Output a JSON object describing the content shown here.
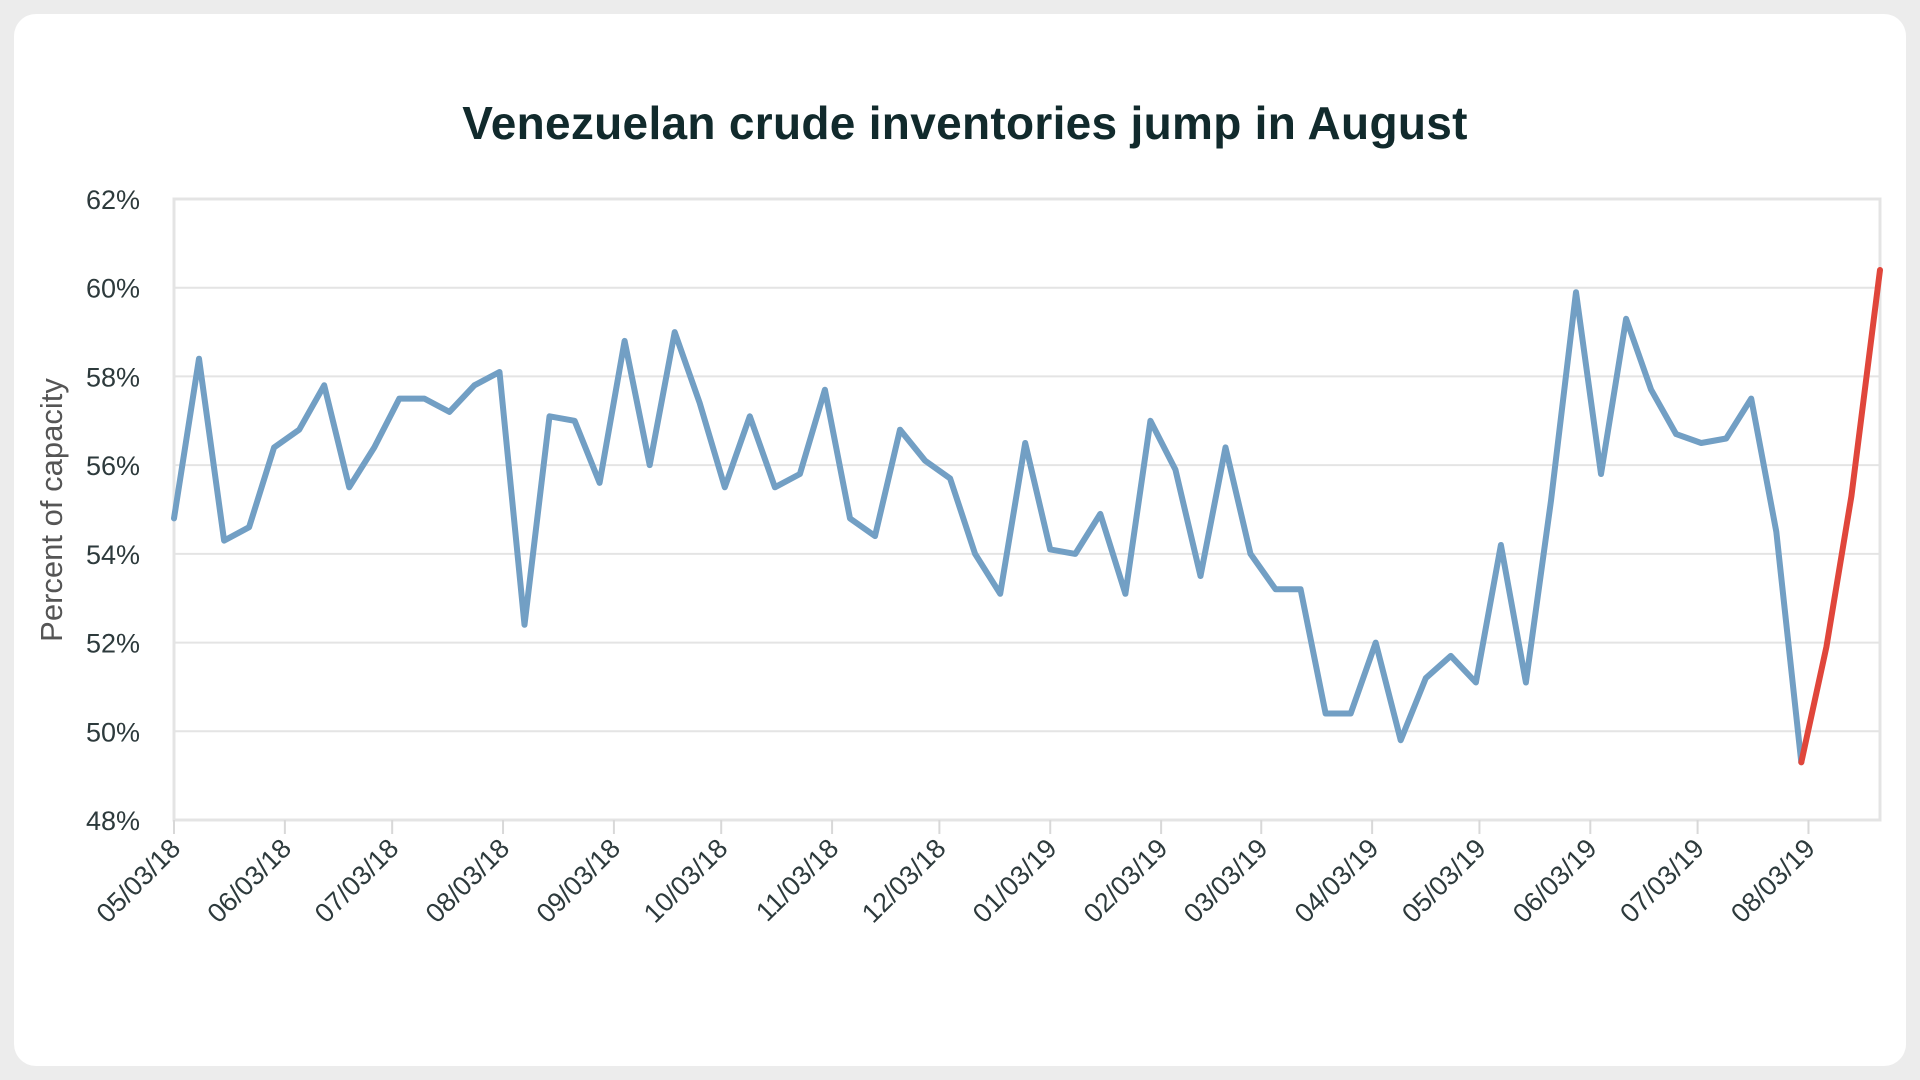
{
  "chart_data": {
    "type": "line",
    "title": "Venezuelan crude inventories jump in August",
    "ylabel": "Percent of capacity",
    "xlabel": "",
    "ylim": [
      48,
      62
    ],
    "ytick_values": [
      48,
      50,
      52,
      54,
      56,
      58,
      60,
      62
    ],
    "ytick_labels": [
      "48%",
      "50%",
      "52%",
      "54%",
      "56%",
      "58%",
      "60%",
      "62%"
    ],
    "xtick_labels": [
      "05/03/18",
      "06/03/18",
      "07/03/18",
      "08/03/18",
      "09/03/18",
      "10/03/18",
      "11/03/18",
      "12/03/18",
      "01/03/19",
      "02/03/19",
      "03/03/19",
      "04/03/19",
      "05/03/19",
      "06/03/19",
      "07/03/19",
      "08/03/19"
    ],
    "xlim": [
      "2018-05-03",
      "2019-08-23"
    ],
    "grid": true,
    "series": [
      {
        "color": "#729fc4",
        "points": [
          [
            "2018-05-03",
            54.8
          ],
          [
            "2018-05-10",
            58.4
          ],
          [
            "2018-05-17",
            54.3
          ],
          [
            "2018-05-24",
            54.6
          ],
          [
            "2018-05-31",
            56.4
          ],
          [
            "2018-06-07",
            56.8
          ],
          [
            "2018-06-14",
            57.8
          ],
          [
            "2018-06-21",
            55.5
          ],
          [
            "2018-06-28",
            56.4
          ],
          [
            "2018-07-05",
            57.5
          ],
          [
            "2018-07-12",
            57.5
          ],
          [
            "2018-07-19",
            57.2
          ],
          [
            "2018-07-26",
            57.8
          ],
          [
            "2018-08-02",
            58.1
          ],
          [
            "2018-08-09",
            52.4
          ],
          [
            "2018-08-16",
            57.1
          ],
          [
            "2018-08-23",
            57.0
          ],
          [
            "2018-08-30",
            55.6
          ],
          [
            "2018-09-06",
            58.8
          ],
          [
            "2018-09-13",
            56.0
          ],
          [
            "2018-09-20",
            59.0
          ],
          [
            "2018-09-27",
            57.4
          ],
          [
            "2018-10-04",
            55.5
          ],
          [
            "2018-10-11",
            57.1
          ],
          [
            "2018-10-18",
            55.5
          ],
          [
            "2018-10-25",
            55.8
          ],
          [
            "2018-11-01",
            57.7
          ],
          [
            "2018-11-08",
            54.8
          ],
          [
            "2018-11-15",
            54.4
          ],
          [
            "2018-11-22",
            56.8
          ],
          [
            "2018-11-29",
            56.1
          ],
          [
            "2018-12-06",
            55.7
          ],
          [
            "2018-12-13",
            54.0
          ],
          [
            "2018-12-20",
            53.1
          ],
          [
            "2018-12-27",
            56.5
          ],
          [
            "2019-01-03",
            54.1
          ],
          [
            "2019-01-10",
            54.0
          ],
          [
            "2019-01-17",
            54.9
          ],
          [
            "2019-01-24",
            53.1
          ],
          [
            "2019-01-31",
            57.0
          ],
          [
            "2019-02-07",
            55.9
          ],
          [
            "2019-02-14",
            53.5
          ],
          [
            "2019-02-21",
            56.4
          ],
          [
            "2019-02-28",
            54.0
          ],
          [
            "2019-03-07",
            53.2
          ],
          [
            "2019-03-14",
            53.2
          ],
          [
            "2019-03-21",
            50.4
          ],
          [
            "2019-03-28",
            50.4
          ],
          [
            "2019-04-04",
            52.0
          ],
          [
            "2019-04-11",
            49.8
          ],
          [
            "2019-04-18",
            51.2
          ],
          [
            "2019-04-25",
            51.7
          ],
          [
            "2019-05-02",
            51.1
          ],
          [
            "2019-05-09",
            54.2
          ],
          [
            "2019-05-16",
            51.1
          ],
          [
            "2019-05-23",
            55.2
          ],
          [
            "2019-05-30",
            59.9
          ],
          [
            "2019-06-06",
            55.8
          ],
          [
            "2019-06-13",
            59.3
          ],
          [
            "2019-06-20",
            57.7
          ],
          [
            "2019-06-27",
            56.7
          ],
          [
            "2019-07-04",
            56.5
          ],
          [
            "2019-07-11",
            56.6
          ],
          [
            "2019-07-18",
            57.5
          ],
          [
            "2019-07-25",
            54.5
          ],
          [
            "2019-08-01",
            49.3
          ]
        ]
      },
      {
        "color": "#e0463b",
        "points": [
          [
            "2019-08-01",
            49.3
          ],
          [
            "2019-08-08",
            51.9
          ],
          [
            "2019-08-15",
            55.3
          ],
          [
            "2019-08-23",
            60.4
          ]
        ]
      }
    ]
  }
}
